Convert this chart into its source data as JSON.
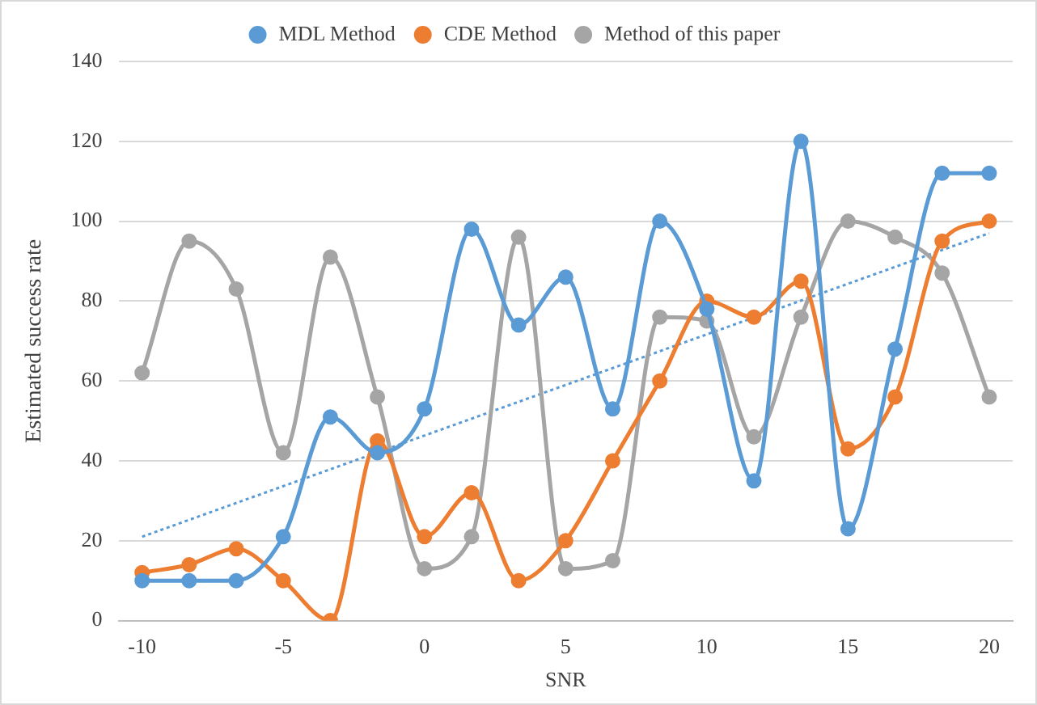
{
  "chart_data": {
    "type": "line",
    "xlabel": "SNR",
    "ylabel": "Estimated success rate",
    "categories": [
      "-10",
      null,
      null,
      "-5",
      null,
      null,
      "0",
      null,
      null,
      "5",
      null,
      null,
      "10",
      null,
      null,
      "15",
      null,
      null,
      "20"
    ],
    "ylim": [
      0,
      140
    ],
    "yticks": [
      0,
      20,
      40,
      60,
      80,
      100,
      120,
      140
    ],
    "grid": "y",
    "legend": "top",
    "marker": "circle",
    "series": [
      {
        "name": "MDL Method",
        "color": "#5b9bd5",
        "values": [
          10,
          10,
          10,
          21,
          51,
          42,
          53,
          98,
          74,
          86,
          53,
          100,
          78,
          35,
          120,
          23,
          68,
          112,
          112
        ]
      },
      {
        "name": "CDE Method",
        "color": "#ed7d31",
        "values": [
          12,
          14,
          18,
          10,
          0,
          45,
          21,
          32,
          10,
          20,
          40,
          60,
          80,
          76,
          85,
          43,
          56,
          95,
          100
        ]
      },
      {
        "name": "Method of this paper",
        "color": "#a5a5a5",
        "values": [
          62,
          95,
          83,
          42,
          91,
          56,
          13,
          21,
          96,
          13,
          15,
          76,
          75,
          46,
          76,
          100,
          96,
          87,
          56
        ]
      },
      {
        "type": "line",
        "color": "#5b9bd5",
        "marker": "none",
        "line_style": "dotted",
        "values": [
          21,
          null,
          null,
          null,
          null,
          null,
          null,
          null,
          null,
          null,
          null,
          null,
          null,
          null,
          null,
          null,
          null,
          null,
          97
        ]
      }
    ]
  }
}
